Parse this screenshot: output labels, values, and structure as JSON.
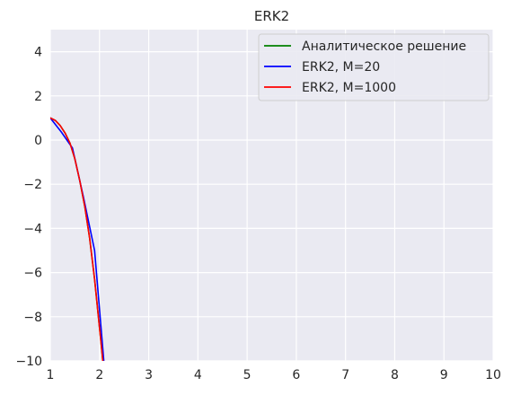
{
  "chart_data": {
    "type": "line",
    "title": "ERK2",
    "xlabel": "",
    "ylabel": "",
    "xlim": [
      1,
      10
    ],
    "ylim": [
      -10,
      5
    ],
    "x_ticks": [
      "1",
      "2",
      "3",
      "4",
      "5",
      "6",
      "7",
      "8",
      "9",
      "10"
    ],
    "y_ticks": [
      "4",
      "2",
      "0",
      "−2",
      "−4",
      "−6",
      "−8",
      "−10"
    ],
    "grid": true,
    "legend_position": "top-right",
    "series": [
      {
        "name": "Аналитическое решение",
        "color": "#008000",
        "x": [
          1.0,
          1.1,
          1.2,
          1.3,
          1.4,
          1.5,
          1.6,
          1.7,
          1.8,
          1.9,
          2.0,
          2.05,
          2.1,
          2.12
        ],
        "y": [
          1.0,
          0.89,
          0.66,
          0.32,
          -0.14,
          -0.86,
          -1.85,
          -3.0,
          -4.45,
          -6.3,
          -8.5,
          -9.6,
          -10.8,
          -11.3
        ]
      },
      {
        "name": "ERK2, M=20",
        "color": "#0000ff",
        "x": [
          1.0,
          1.225,
          1.45,
          1.675,
          1.9,
          2.125
        ],
        "y": [
          1.0,
          0.36,
          -0.36,
          -2.6,
          -5.0,
          -11.0
        ]
      },
      {
        "name": "ERK2, M=1000",
        "color": "#ff0000",
        "x": [
          1.0,
          1.1,
          1.2,
          1.3,
          1.4,
          1.5,
          1.6,
          1.7,
          1.8,
          1.9,
          2.0,
          2.05,
          2.1,
          2.12
        ],
        "y": [
          1.0,
          0.89,
          0.66,
          0.32,
          -0.14,
          -0.86,
          -1.85,
          -3.0,
          -4.45,
          -6.3,
          -8.5,
          -9.6,
          -10.8,
          -11.3
        ]
      }
    ]
  }
}
